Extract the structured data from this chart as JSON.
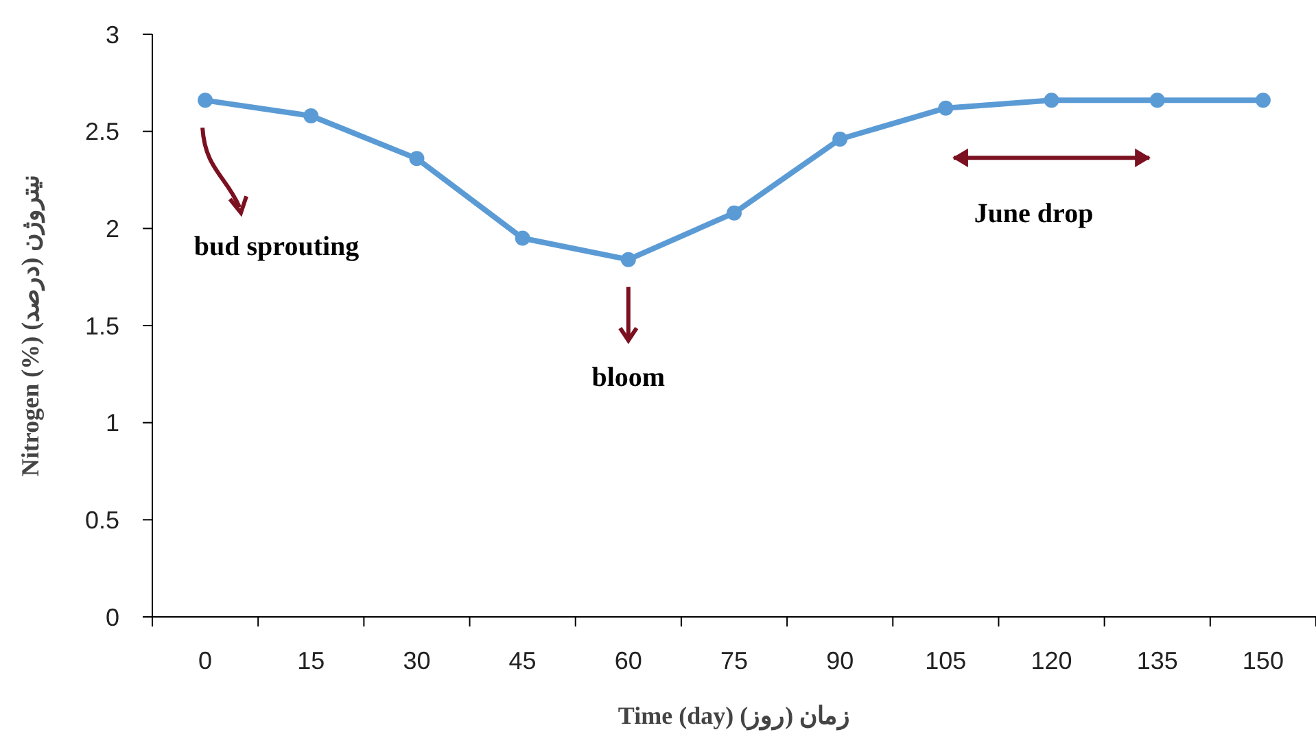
{
  "chart_data": {
    "type": "line",
    "xlabel": "Time (day) زمان (روز)",
    "ylabel": "Nitrogen (%) نیتروژن (درصد)",
    "categories": [
      "0",
      "15",
      "30",
      "45",
      "60",
      "75",
      "90",
      "105",
      "120",
      "135",
      "150"
    ],
    "series": [
      {
        "color": "#5b9bd5",
        "values": [
          2.66,
          2.58,
          2.36,
          1.95,
          1.84,
          2.08,
          2.46,
          2.62,
          2.66,
          2.66,
          2.66
        ]
      }
    ],
    "ylim": [
      0,
      3
    ],
    "yticks": [
      0,
      0.5,
      1,
      1.5,
      2,
      2.5,
      3
    ],
    "grid": false,
    "marker": "circle",
    "line_style": "solid",
    "annotations": [
      "bud sprouting",
      "bloom",
      "June drop"
    ]
  }
}
